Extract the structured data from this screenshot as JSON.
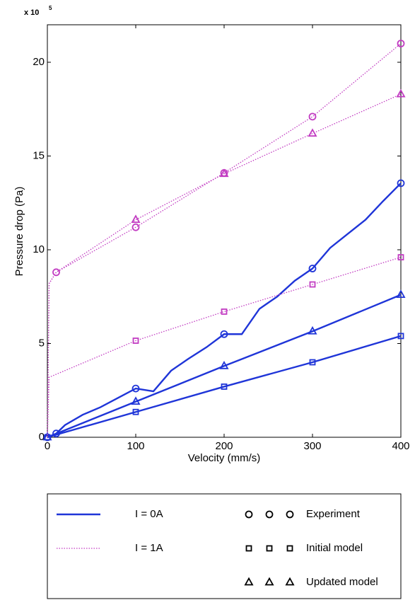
{
  "chart_data": {
    "type": "line",
    "ylabel": "Pressure drop (Pa)",
    "xlabel": "Velocity (mm/s)",
    "y_multiplier_base": "x 10",
    "y_multiplier_exponent": "5",
    "xlim": [
      0,
      400
    ],
    "xticks": [
      0,
      100,
      200,
      300,
      400
    ],
    "ylim": [
      0,
      22
    ],
    "yticks": [
      0,
      5,
      10,
      15,
      20
    ],
    "line_legend": [
      {
        "name": "I = 0A",
        "color": "#1f35d8",
        "dash": false
      },
      {
        "name": "I = 1A",
        "color": "#c23cc2",
        "dash": true
      }
    ],
    "marker_legend": [
      {
        "name": "Experiment",
        "shape": "circle"
      },
      {
        "name": "Initial model",
        "shape": "square"
      },
      {
        "name": "Updated model",
        "shape": "triangle"
      }
    ],
    "series": [
      {
        "color": "#1f35d8",
        "dash": false,
        "shape": "circle",
        "x": [
          0,
          10,
          20,
          40,
          60,
          80,
          100,
          120,
          140,
          160,
          180,
          200,
          220,
          240,
          260,
          280,
          300,
          320,
          340,
          360,
          380,
          400
        ],
        "values": [
          0,
          0.2,
          0.65,
          1.2,
          1.6,
          2.1,
          2.6,
          2.45,
          3.55,
          4.2,
          4.8,
          5.5,
          5.5,
          6.85,
          7.5,
          8.35,
          9.0,
          10.1,
          10.85,
          11.6,
          12.6,
          13.55
        ],
        "marked": [
          true,
          true,
          false,
          false,
          false,
          false,
          true,
          false,
          false,
          false,
          false,
          true,
          false,
          false,
          false,
          false,
          true,
          false,
          false,
          false,
          false,
          true
        ]
      },
      {
        "color": "#1f35d8",
        "dash": false,
        "shape": "square",
        "x": [
          0,
          100,
          200,
          300,
          400
        ],
        "values": [
          0,
          1.35,
          2.7,
          4.0,
          5.4
        ],
        "marked": [
          true,
          true,
          true,
          true,
          true
        ]
      },
      {
        "color": "#1f35d8",
        "dash": false,
        "shape": "triangle",
        "x": [
          0,
          100,
          200,
          300,
          400
        ],
        "values": [
          0,
          1.9,
          3.8,
          5.65,
          7.6
        ],
        "marked": [
          true,
          true,
          true,
          true,
          true
        ]
      },
      {
        "color": "#c23cc2",
        "dash": true,
        "shape": "circle",
        "x": [
          0,
          2,
          10,
          100,
          200,
          300,
          400
        ],
        "values": [
          0,
          8.2,
          8.8,
          11.2,
          14.1,
          17.1,
          21.0
        ],
        "marked": [
          false,
          false,
          true,
          true,
          true,
          true,
          true
        ]
      },
      {
        "color": "#c23cc2",
        "dash": true,
        "shape": "square",
        "x": [
          0,
          2,
          100,
          200,
          300,
          400
        ],
        "values": [
          0,
          3.2,
          5.15,
          6.7,
          8.15,
          9.6
        ],
        "marked": [
          false,
          false,
          true,
          true,
          true,
          true
        ]
      },
      {
        "color": "#c23cc2",
        "dash": true,
        "shape": "triangle",
        "x": [
          0,
          2,
          10,
          100,
          200,
          300,
          400
        ],
        "values": [
          0,
          8.2,
          8.8,
          11.6,
          14.05,
          16.2,
          18.3
        ],
        "marked": [
          false,
          false,
          false,
          true,
          true,
          true,
          true
        ]
      }
    ]
  }
}
